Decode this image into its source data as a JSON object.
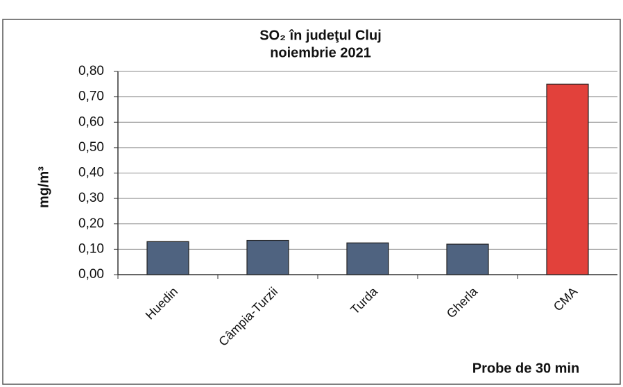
{
  "chart_data": {
    "type": "bar",
    "title": "SO₂ în judeţul Cluj",
    "subtitle": "noiembrie 2021",
    "y_label": "mg/m³",
    "x_label": "Probe de 30 min",
    "categories": [
      "Huedin",
      "Câmpia-Turzii",
      "Turda",
      "Gherla",
      "CMA"
    ],
    "values": [
      0.13,
      0.135,
      0.125,
      0.12,
      0.75
    ],
    "colors": [
      "#4f6380",
      "#4f6380",
      "#4f6380",
      "#4f6380",
      "#e2413b"
    ],
    "ylim": [
      0,
      0.8
    ],
    "yticks": [
      {
        "value": 0,
        "label": "0,00"
      },
      {
        "value": 0.1,
        "label": "0,10"
      },
      {
        "value": 0.2,
        "label": "0,20"
      },
      {
        "value": 0.3,
        "label": "0,30"
      },
      {
        "value": 0.4,
        "label": "0,40"
      },
      {
        "value": 0.5,
        "label": "0,50"
      },
      {
        "value": 0.6,
        "label": "0,60"
      },
      {
        "value": 0.7,
        "label": "0,70"
      },
      {
        "value": 0.8,
        "label": "0,80"
      }
    ],
    "grid": true
  }
}
